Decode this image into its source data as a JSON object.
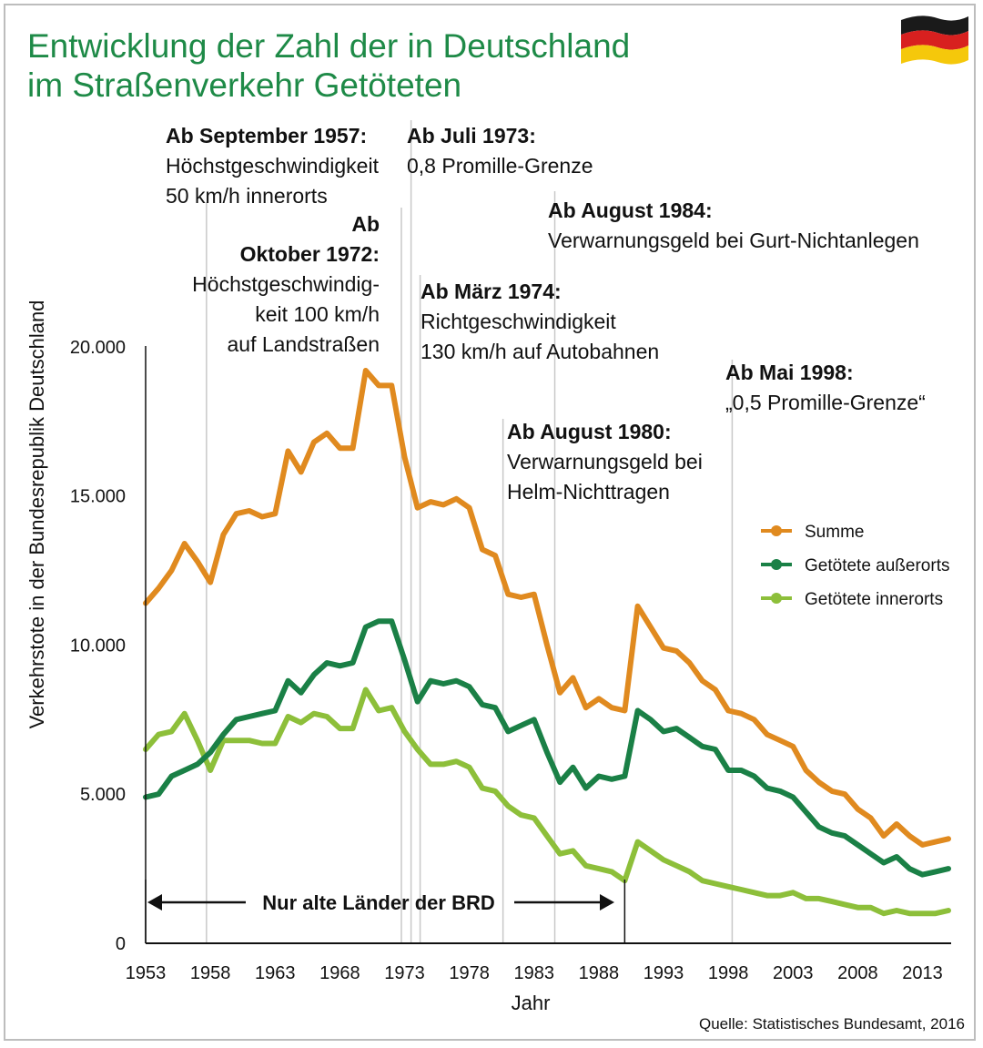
{
  "chart_data": {
    "type": "line",
    "title_lines": [
      "Entwicklung der Zahl der in Deutschland",
      "im Straßenverkehr Getöteten"
    ],
    "xlabel": "Jahr",
    "ylabel": "Verkehrstote in der Bundesrepublik Deutschland",
    "xlim": [
      1953,
      2015
    ],
    "ylim": [
      0,
      21000
    ],
    "x_ticks": [
      1953,
      1958,
      1963,
      1968,
      1973,
      1978,
      1983,
      1988,
      1993,
      1998,
      2003,
      2008,
      2013
    ],
    "y_ticks": [
      {
        "value": 0,
        "label": "0"
      },
      {
        "value": 5000,
        "label": "5.000"
      },
      {
        "value": 10000,
        "label": "10.000"
      },
      {
        "value": 15000,
        "label": "15.000"
      },
      {
        "value": 20000,
        "label": "20.000"
      }
    ],
    "x": [
      1953,
      1954,
      1955,
      1956,
      1957,
      1958,
      1959,
      1960,
      1961,
      1962,
      1963,
      1964,
      1965,
      1966,
      1967,
      1968,
      1969,
      1970,
      1971,
      1972,
      1973,
      1974,
      1975,
      1976,
      1977,
      1978,
      1979,
      1980,
      1981,
      1982,
      1983,
      1984,
      1985,
      1986,
      1987,
      1988,
      1989,
      1990,
      1991,
      1992,
      1993,
      1994,
      1995,
      1996,
      1997,
      1998,
      1999,
      2000,
      2001,
      2002,
      2003,
      2004,
      2005,
      2006,
      2007,
      2008,
      2009,
      2010,
      2011,
      2012,
      2013,
      2014,
      2015
    ],
    "series": [
      {
        "name": "Summe",
        "color": "#e08a1f",
        "values": [
          11400,
          11900,
          12500,
          13400,
          12800,
          12100,
          13700,
          14400,
          14500,
          14300,
          14400,
          16500,
          15800,
          16800,
          17100,
          16600,
          16600,
          19200,
          18700,
          18700,
          16300,
          14600,
          14800,
          14700,
          14900,
          14600,
          13200,
          13000,
          11700,
          11600,
          11700,
          10000,
          8400,
          8900,
          7900,
          8200,
          7900,
          7800,
          11300,
          10600,
          9900,
          9800,
          9400,
          8800,
          8500,
          7800,
          7700,
          7500,
          7000,
          6800,
          6600,
          5800,
          5400,
          5100,
          5000,
          4500,
          4200,
          3600,
          4000,
          3600,
          3300,
          3400,
          3500
        ]
      },
      {
        "name": "Getötete außerorts",
        "color": "#1a8046",
        "values": [
          4900,
          5000,
          5600,
          5800,
          6000,
          6400,
          7000,
          7500,
          7600,
          7700,
          7800,
          8800,
          8400,
          9000,
          9400,
          9300,
          9400,
          10600,
          10800,
          10800,
          9500,
          8100,
          8800,
          8700,
          8800,
          8600,
          8000,
          7900,
          7100,
          7300,
          7500,
          6400,
          5400,
          5900,
          5200,
          5600,
          5500,
          5600,
          7800,
          7500,
          7100,
          7200,
          6900,
          6600,
          6500,
          5800,
          5800,
          5600,
          5200,
          5100,
          4900,
          4400,
          3900,
          3700,
          3600,
          3300,
          3000,
          2700,
          2900,
          2500,
          2300,
          2400,
          2500
        ]
      },
      {
        "name": "Getötete innerorts",
        "color": "#8dbf3a",
        "values": [
          6500,
          7000,
          7100,
          7700,
          6800,
          5800,
          6800,
          6800,
          6800,
          6700,
          6700,
          7600,
          7400,
          7700,
          7600,
          7200,
          7200,
          8500,
          7800,
          7900,
          7100,
          6500,
          6000,
          6000,
          6100,
          5900,
          5200,
          5100,
          4600,
          4300,
          4200,
          3600,
          3000,
          3100,
          2600,
          2500,
          2400,
          2100,
          3400,
          3100,
          2800,
          2600,
          2400,
          2100,
          2000,
          1900,
          1800,
          1700,
          1600,
          1600,
          1700,
          1500,
          1500,
          1400,
          1300,
          1200,
          1200,
          1000,
          1100,
          1000,
          1000,
          1000,
          1100
        ]
      }
    ],
    "annotations": [
      {
        "year": 1957.7,
        "head": "Ab September 1957:",
        "lines": [
          "Höchstgeschwindigkeit",
          "50 km/h innerorts"
        ]
      },
      {
        "year": 1972.75,
        "head": "Ab",
        "head2": "Oktober 1972:",
        "lines": [
          "Höchstgeschwindig-",
          "keit 100 km/h",
          "auf Landstraßen"
        ]
      },
      {
        "year": 1973.5,
        "head": "Ab Juli 1973:",
        "lines": [
          "0,8 Promille-Grenze"
        ]
      },
      {
        "year": 1974.2,
        "head": "Ab März 1974:",
        "lines": [
          "Richtgeschwindigkeit",
          "130 km/h auf Autobahnen"
        ]
      },
      {
        "year": 1980.6,
        "head": "Ab August 1980:",
        "lines": [
          "Verwarnungsgeld bei",
          "Helm-Nichttragen"
        ]
      },
      {
        "year": 1984.6,
        "head": "Ab August 1984:",
        "lines": [
          "Verwarnungsgeld bei Gurt-Nichtanlegen"
        ]
      },
      {
        "year": 1998.3,
        "head": "Ab Mai 1998:",
        "lines": [
          "„0,5 Promille-Grenze“"
        ]
      }
    ],
    "span": {
      "from": 1953,
      "to": 1990,
      "label": "Nur alte Länder der BRD"
    },
    "legend_position": "right",
    "source": "Quelle: Statistisches Bundesamt, 2016"
  },
  "flag_colors": [
    "#1a1a1a",
    "#d8201f",
    "#f5c80b"
  ],
  "flag_icon": "flag-germany-icon"
}
